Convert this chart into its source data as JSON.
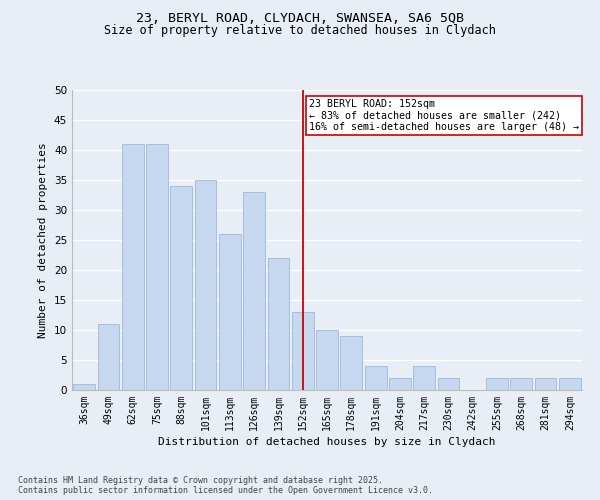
{
  "title1": "23, BERYL ROAD, CLYDACH, SWANSEA, SA6 5QB",
  "title2": "Size of property relative to detached houses in Clydach",
  "xlabel": "Distribution of detached houses by size in Clydach",
  "ylabel": "Number of detached properties",
  "categories": [
    "36sqm",
    "49sqm",
    "62sqm",
    "75sqm",
    "88sqm",
    "101sqm",
    "113sqm",
    "126sqm",
    "139sqm",
    "152sqm",
    "165sqm",
    "178sqm",
    "191sqm",
    "204sqm",
    "217sqm",
    "230sqm",
    "242sqm",
    "255sqm",
    "268sqm",
    "281sqm",
    "294sqm"
  ],
  "values": [
    1,
    11,
    41,
    41,
    34,
    35,
    26,
    33,
    22,
    13,
    10,
    9,
    4,
    2,
    4,
    2,
    0,
    2,
    2,
    2,
    2
  ],
  "bar_color": "#c5d8f0",
  "bar_edge_color": "#9fb8d8",
  "vline_x": 9,
  "vline_color": "#cc0000",
  "annotation_text": "23 BERYL ROAD: 152sqm\n← 83% of detached houses are smaller (242)\n16% of semi-detached houses are larger (48) →",
  "annotation_box_color": "#ffffff",
  "annotation_box_edge": "#cc0000",
  "ylim": [
    0,
    50
  ],
  "yticks": [
    0,
    5,
    10,
    15,
    20,
    25,
    30,
    35,
    40,
    45,
    50
  ],
  "footer": "Contains HM Land Registry data © Crown copyright and database right 2025.\nContains public sector information licensed under the Open Government Licence v3.0.",
  "bg_color": "#e8eef5",
  "plot_bg_color": "#e8eef5",
  "grid_color": "#ffffff",
  "title1_fontsize": 9.5,
  "title2_fontsize": 8.5,
  "annotation_fontsize": 7.2,
  "footer_fontsize": 6.0,
  "axis_label_fontsize": 8.0,
  "tick_fontsize": 7.0,
  "ytick_fontsize": 7.5
}
